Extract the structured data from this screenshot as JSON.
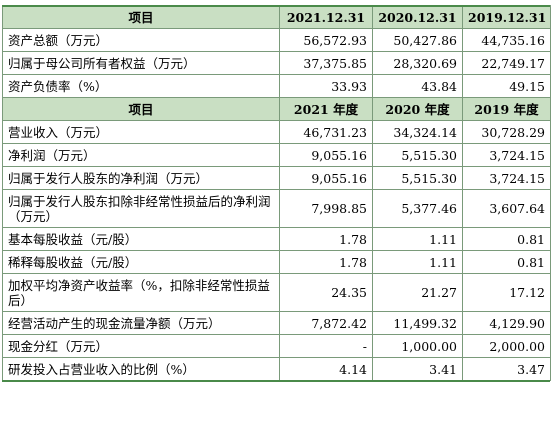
{
  "section1": {
    "header": [
      "项目",
      "2021.12.31",
      "2020.12.31",
      "2019.12.31"
    ],
    "rows": [
      {
        "label": "资产总额（万元）",
        "v": [
          "56,572.93",
          "50,427.86",
          "44,735.16"
        ]
      },
      {
        "label": "归属于母公司所有者权益（万元）",
        "v": [
          "37,375.85",
          "28,320.69",
          "22,749.17"
        ]
      },
      {
        "label": "资产负债率（%）",
        "v": [
          "33.93",
          "43.84",
          "49.15"
        ]
      }
    ]
  },
  "section2": {
    "header": [
      "项目",
      "2021 年度",
      "2020 年度",
      "2019 年度"
    ],
    "rows": [
      {
        "label": "营业收入（万元）",
        "v": [
          "46,731.23",
          "34,324.14",
          "30,728.29"
        ]
      },
      {
        "label": "净利润（万元）",
        "v": [
          "9,055.16",
          "5,515.30",
          "3,724.15"
        ]
      },
      {
        "label": "归属于发行人股东的净利润（万元）",
        "v": [
          "9,055.16",
          "5,515.30",
          "3,724.15"
        ]
      },
      {
        "label": "归属于发行人股东扣除非经常性损益后的净利润（万元）",
        "v": [
          "7,998.85",
          "5,377.46",
          "3,607.64"
        ]
      },
      {
        "label": "基本每股收益（元/股）",
        "v": [
          "1.78",
          "1.11",
          "0.81"
        ]
      },
      {
        "label": "稀释每股收益（元/股）",
        "v": [
          "1.78",
          "1.11",
          "0.81"
        ]
      },
      {
        "label": "加权平均净资产收益率（%，扣除非经常性损益后）",
        "v": [
          "24.35",
          "21.27",
          "17.12"
        ]
      },
      {
        "label": "经营活动产生的现金流量净额（万元）",
        "v": [
          "7,872.42",
          "11,499.32",
          "4,129.90"
        ]
      },
      {
        "label": "现金分红（万元）",
        "v": [
          "-",
          "1,000.00",
          "2,000.00"
        ]
      },
      {
        "label": "研发投入占营业收入的比例（%）",
        "v": [
          "4.14",
          "3.41",
          "3.47"
        ]
      }
    ]
  }
}
